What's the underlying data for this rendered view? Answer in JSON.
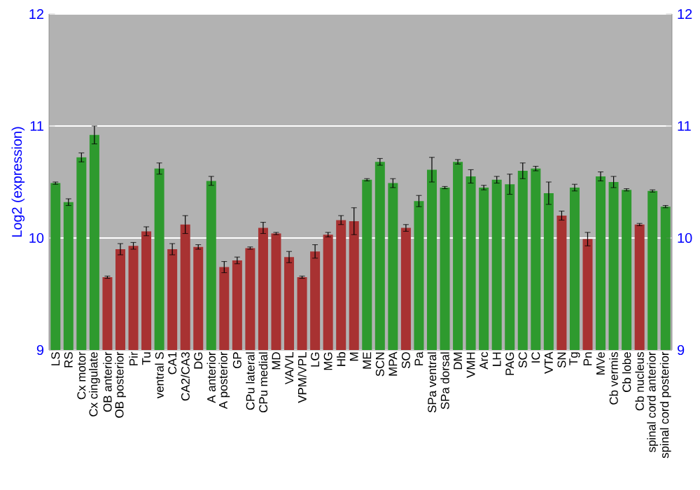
{
  "chart_data": {
    "type": "bar",
    "ylabel": "Log2 (expression)",
    "categories": [
      "LS",
      "RS",
      "Cx motor",
      "Cx cingulate",
      "OB anterior",
      "OB posterior",
      "Pir",
      "Tu",
      "ventral S",
      "CA1",
      "CA2/CA3",
      "DG",
      "A anterior",
      "A posterior",
      "GP",
      "CPu lateral",
      "CPu medial",
      "MD",
      "VA/VL",
      "VPM/VPL",
      "LG",
      "MG",
      "Hb",
      "M",
      "ME",
      "SCN",
      "MPA",
      "SO",
      "Pa",
      "SPa ventral",
      "SPa dorsal",
      "DM",
      "VMH",
      "Arc",
      "LH",
      "PAG",
      "SC",
      "IC",
      "VTA",
      "SN",
      "Tg",
      "Pn",
      "MVe",
      "Cb vermis",
      "Cb lobe",
      "Cb nucleus",
      "spinal cord anterior",
      "spinal cord posterior"
    ],
    "values": [
      10.49,
      10.32,
      10.72,
      10.92,
      9.65,
      9.9,
      9.93,
      10.06,
      10.62,
      9.9,
      10.12,
      9.92,
      10.51,
      9.74,
      9.8,
      9.91,
      10.09,
      10.04,
      9.83,
      9.65,
      9.88,
      10.03,
      10.16,
      10.15,
      10.52,
      10.68,
      10.49,
      10.09,
      10.33,
      10.61,
      10.45,
      10.68,
      10.55,
      10.45,
      10.52,
      10.48,
      10.6,
      10.62,
      10.4,
      10.2,
      10.45,
      9.99,
      10.55,
      10.5,
      10.43,
      10.12,
      10.42,
      10.28
    ],
    "errors": [
      0.01,
      0.03,
      0.04,
      0.08,
      0.01,
      0.05,
      0.03,
      0.04,
      0.05,
      0.05,
      0.08,
      0.02,
      0.04,
      0.05,
      0.03,
      0.01,
      0.05,
      0.01,
      0.05,
      0.01,
      0.06,
      0.02,
      0.04,
      0.12,
      0.01,
      0.03,
      0.04,
      0.03,
      0.05,
      0.11,
      0.01,
      0.02,
      0.06,
      0.02,
      0.03,
      0.09,
      0.07,
      0.02,
      0.1,
      0.04,
      0.03,
      0.06,
      0.04,
      0.05,
      0.01,
      0.01,
      0.01,
      0.01
    ],
    "colors": [
      "#2e9a2e",
      "#2e9a2e",
      "#2e9a2e",
      "#2e9a2e",
      "#a83232",
      "#a83232",
      "#a83232",
      "#a83232",
      "#2e9a2e",
      "#a83232",
      "#a83232",
      "#a83232",
      "#2e9a2e",
      "#a83232",
      "#a83232",
      "#a83232",
      "#a83232",
      "#a83232",
      "#a83232",
      "#a83232",
      "#a83232",
      "#a83232",
      "#a83232",
      "#a83232",
      "#2e9a2e",
      "#2e9a2e",
      "#2e9a2e",
      "#a83232",
      "#2e9a2e",
      "#2e9a2e",
      "#2e9a2e",
      "#2e9a2e",
      "#2e9a2e",
      "#2e9a2e",
      "#2e9a2e",
      "#2e9a2e",
      "#2e9a2e",
      "#2e9a2e",
      "#2e9a2e",
      "#a83232",
      "#2e9a2e",
      "#a83232",
      "#2e9a2e",
      "#2e9a2e",
      "#2e9a2e",
      "#a83232",
      "#2e9a2e",
      "#2e9a2e"
    ],
    "ylim": [
      9,
      12
    ],
    "yticks": [
      9,
      10,
      11,
      12
    ],
    "y2lim": [
      9,
      12
    ],
    "y2ticks": [
      9,
      10,
      11,
      12
    ],
    "grid": "y"
  }
}
